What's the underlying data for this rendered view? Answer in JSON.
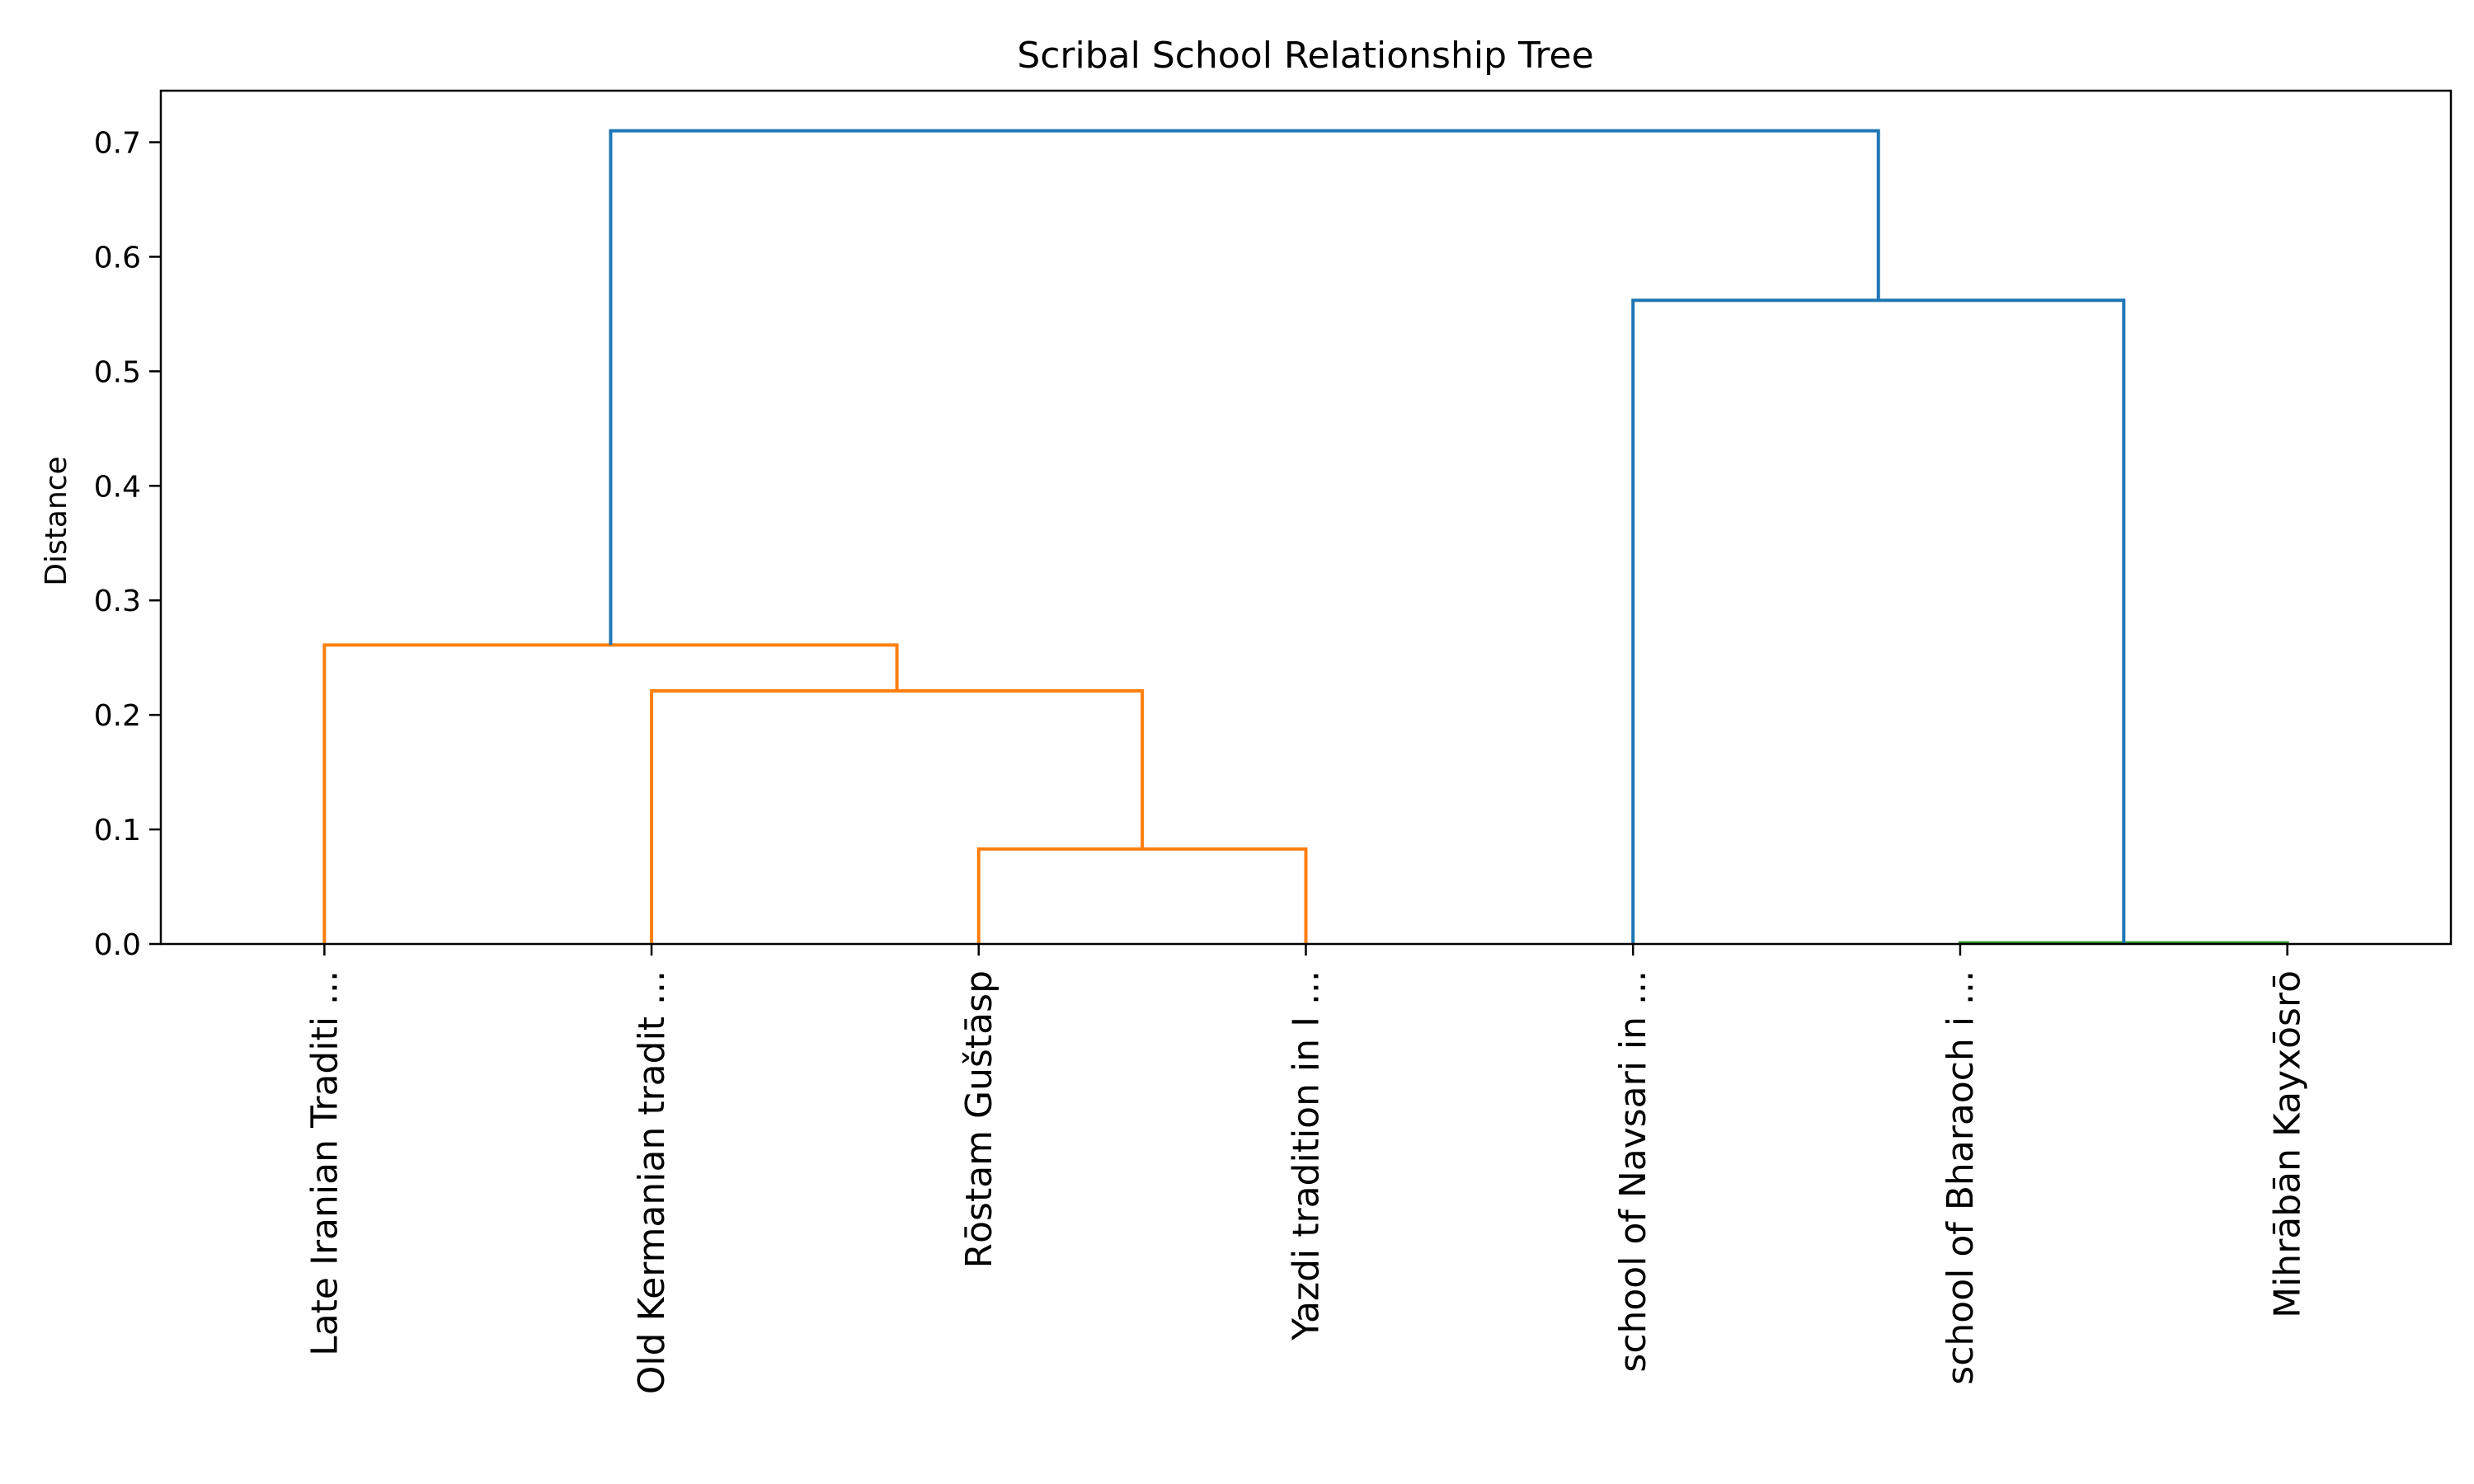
{
  "chart_data": {
    "type": "dendrogram",
    "title": "Scribal School Relationship Tree",
    "xlabel": "",
    "ylabel": "Distance",
    "ylim": [
      0,
      0.745
    ],
    "yticks": [
      0.0,
      0.1,
      0.2,
      0.3,
      0.4,
      0.5,
      0.6,
      0.7
    ],
    "ytick_labels": [
      "0.0",
      "0.1",
      "0.2",
      "0.3",
      "0.4",
      "0.5",
      "0.6",
      "0.7"
    ],
    "grid": false,
    "leaves": [
      "Late Iranian Traditi ...",
      "Old Kermanian tradit ...",
      "Rōstam Guštāsp",
      "Yazdi tradition in I ...",
      "school of Navsari in ...",
      "school of Bharaoch i ...",
      "Mihrābān Kayxōsrō"
    ],
    "merges": [
      {
        "left": "leaf:2",
        "right": "leaf:3",
        "height": 0.083,
        "color": "#ff7f0e"
      },
      {
        "left": "leaf:1",
        "right": "node:0",
        "height": 0.221,
        "color": "#ff7f0e"
      },
      {
        "left": "leaf:0",
        "right": "node:1",
        "height": 0.261,
        "color": "#ff7f0e"
      },
      {
        "left": "leaf:5",
        "right": "leaf:6",
        "height": 0.001,
        "color": "#2ca02c"
      },
      {
        "left": "leaf:4",
        "right": "node:3",
        "height": 0.562,
        "color": "#1f77b4"
      },
      {
        "left": "node:2",
        "right": "node:4",
        "height": 0.71,
        "color": "#1f77b4"
      }
    ],
    "colors": {
      "cluster_a": "#ff7f0e",
      "cluster_b": "#2ca02c",
      "above_threshold": "#1f77b4"
    }
  }
}
